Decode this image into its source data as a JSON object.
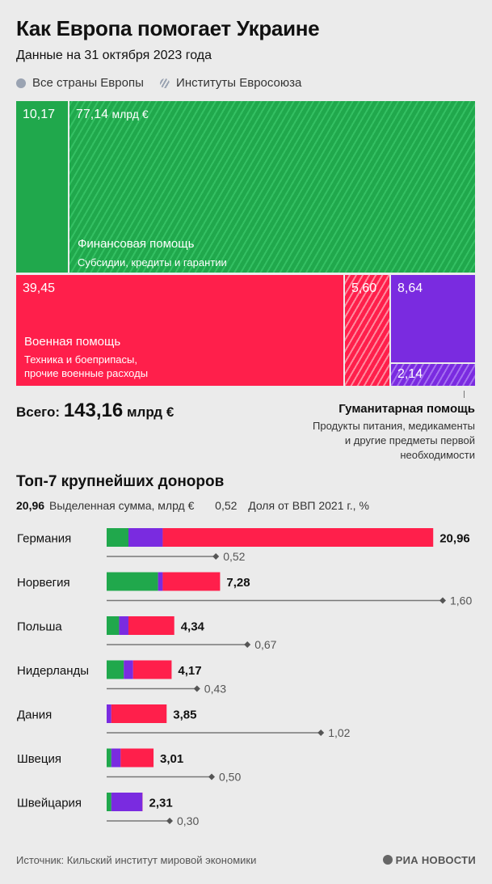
{
  "title": "Как Европа помогает Украине",
  "subtitle": "Данные на 31 октября 2023 года",
  "legend": {
    "solid": "Все страны Европы",
    "hatched": "Институты Евросоюза"
  },
  "colors": {
    "financial": "#20a84c",
    "military": "#ff1f4b",
    "humanitarian": "#7a2be0",
    "connector": "#777777"
  },
  "treemap": {
    "financial_countries": "10,17",
    "financial_eu": "77,14",
    "financial_eu_unit": "млрд €",
    "financial_label": "Финансовая помощь",
    "financial_sub": "Субсидии, кредиты и гарантии",
    "military_countries": "39,45",
    "military_eu": "5,60",
    "military_label": "Военная помощь",
    "military_sub_1": "Техника и боеприпасы,",
    "military_sub_2": "прочие военные расходы",
    "humanitarian_countries": "8,64",
    "humanitarian_eu": "2,14"
  },
  "total": {
    "label": "Всего:",
    "value": "143,16",
    "unit": "млрд €"
  },
  "humanitarian": {
    "title": "Гуманитарная помощь",
    "sub_1": "Продукты питания, медикаменты",
    "sub_2": "и другие предметы первой",
    "sub_3": "необходимости"
  },
  "top": {
    "title": "Топ-7 крупнейших доноров",
    "legend_amount_example": "20,96",
    "legend_amount_label": "Выделенная сумма, млрд €",
    "legend_share_example": "0,52",
    "legend_share_label": "Доля от ВВП 2021 г., %"
  },
  "chart_data": {
    "type": "bar",
    "title": "Топ-7 крупнейших доноров",
    "categories": [
      "Германия",
      "Норвегия",
      "Польша",
      "Нидерланды",
      "Дания",
      "Швеция",
      "Швейцария"
    ],
    "series": [
      {
        "name": "Финансовая помощь",
        "color": "#20a84c",
        "values": [
          1.4,
          3.3,
          0.8,
          1.1,
          0.0,
          0.3,
          0.3
        ]
      },
      {
        "name": "Гуманитарная помощь",
        "color": "#7a2be0",
        "values": [
          2.2,
          0.3,
          0.6,
          0.6,
          0.3,
          0.6,
          2.0
        ]
      },
      {
        "name": "Военная помощь",
        "color": "#ff1f4b",
        "values": [
          17.36,
          3.68,
          2.94,
          2.47,
          3.55,
          2.11,
          0.01
        ]
      }
    ],
    "totals": [
      20.96,
      7.28,
      4.34,
      4.17,
      3.85,
      3.01,
      2.31
    ],
    "totals_labels": [
      "20,96",
      "7,28",
      "4,34",
      "4,17",
      "3,85",
      "3,01",
      "2,31"
    ],
    "gdp_share": [
      0.52,
      1.6,
      0.67,
      0.43,
      1.02,
      0.5,
      0.3
    ],
    "gdp_share_labels": [
      "0,52",
      "1,60",
      "0,67",
      "0,43",
      "1,02",
      "0,50",
      "0,30"
    ],
    "xlabel": "Выделенная сумма, млрд €",
    "ylabel": "",
    "xlim": [
      0,
      21
    ],
    "gdp_xlim": [
      0,
      1.6
    ]
  },
  "source": "Источник: Кильский институт мировой экономики",
  "brand": "РИА НОВОСТИ"
}
